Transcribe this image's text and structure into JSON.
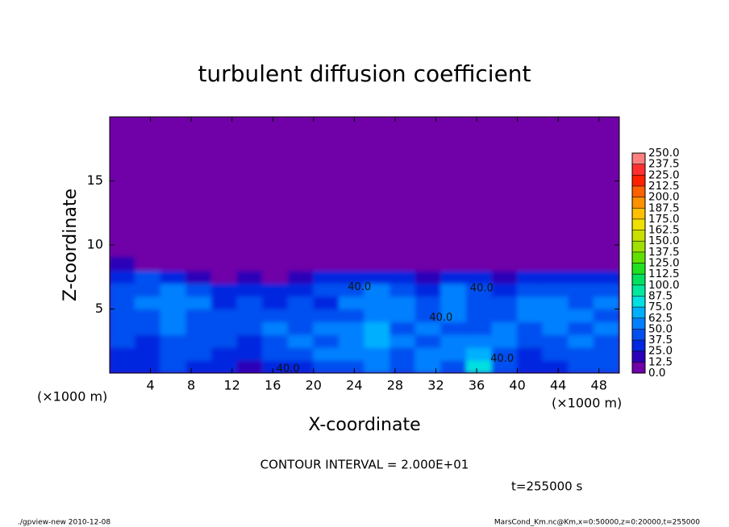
{
  "chart_data": {
    "type": "contour",
    "title": "turbulent diffusion coefficient",
    "x_label": "X-coordinate",
    "y_label": "Z-coordinate",
    "x_unit_label": "(×1000 m)",
    "y_unit_label": "(×1000 m)",
    "xlim": [
      0,
      50
    ],
    "xticks": [
      4,
      8,
      12,
      16,
      20,
      24,
      28,
      32,
      36,
      40,
      44,
      48
    ],
    "ylim": [
      0,
      20
    ],
    "yticks": [
      5,
      10,
      15
    ],
    "levels": [
      {
        "value": 0,
        "label": "0.0"
      },
      {
        "value": 12.5,
        "label": "12.5"
      },
      {
        "value": 25,
        "label": "25.0"
      },
      {
        "value": 37.5,
        "label": "37.5"
      },
      {
        "value": 50,
        "label": "50.0"
      },
      {
        "value": 62.5,
        "label": "62.5"
      },
      {
        "value": 75,
        "label": "75.0"
      },
      {
        "value": 87.5,
        "label": "87.5"
      },
      {
        "value": 100,
        "label": "100.0"
      },
      {
        "value": 112.5,
        "label": "112.5"
      },
      {
        "value": 125,
        "label": "125.0"
      },
      {
        "value": 137.5,
        "label": "137.5"
      },
      {
        "value": 150,
        "label": "150.0"
      },
      {
        "value": 162.5,
        "label": "162.5"
      },
      {
        "value": 175,
        "label": "175.0"
      },
      {
        "value": 187.5,
        "label": "187.5"
      },
      {
        "value": 200,
        "label": "200.0"
      },
      {
        "value": 212.5,
        "label": "212.5"
      },
      {
        "value": 225,
        "label": "225.0"
      },
      {
        "value": 237.5,
        "label": "237.5"
      },
      {
        "value": 250,
        "label": "250.0"
      }
    ],
    "colors": [
      "#7000a8",
      "#2a00b8",
      "#0028e0",
      "#0050f0",
      "#0080ff",
      "#00b0ff",
      "#00e0e0",
      "#00e8a0",
      "#00e060",
      "#20e020",
      "#60e000",
      "#a0e000",
      "#c8e000",
      "#f0e000",
      "#ffc000",
      "#ff9000",
      "#ff6000",
      "#ff2000",
      "#ff3030",
      "#ff8080"
    ],
    "field": {
      "x": [
        1.25,
        3.75,
        6.25,
        8.75,
        11.25,
        13.75,
        16.25,
        18.75,
        21.25,
        23.75,
        26.25,
        28.75,
        31.25,
        33.75,
        36.25,
        38.75,
        41.25,
        43.75,
        46.25,
        48.75
      ],
      "z": [
        0.5,
        1.5,
        2.5,
        3.5,
        4.5,
        5.5,
        6.5,
        7.5,
        8.5
      ],
      "values": [
        [
          30,
          25,
          40,
          35,
          30,
          20,
          30,
          35,
          40,
          45,
          55,
          40,
          60,
          45,
          80,
          40,
          30,
          35,
          40,
          40
        ],
        [
          35,
          30,
          45,
          40,
          35,
          30,
          40,
          45,
          50,
          50,
          60,
          45,
          55,
          50,
          70,
          45,
          35,
          40,
          45,
          40
        ],
        [
          40,
          35,
          45,
          45,
          40,
          35,
          45,
          50,
          45,
          55,
          70,
          50,
          45,
          55,
          50,
          50,
          40,
          45,
          50,
          45
        ],
        [
          45,
          40,
          50,
          40,
          45,
          40,
          50,
          40,
          50,
          50,
          65,
          45,
          50,
          45,
          45,
          50,
          45,
          50,
          45,
          50
        ],
        [
          40,
          45,
          50,
          45,
          40,
          45,
          40,
          45,
          40,
          45,
          60,
          50,
          45,
          50,
          40,
          45,
          50,
          55,
          50,
          45
        ],
        [
          45,
          50,
          55,
          50,
          35,
          40,
          35,
          40,
          35,
          50,
          55,
          55,
          40,
          55,
          45,
          40,
          55,
          50,
          45,
          50
        ],
        [
          40,
          45,
          50,
          40,
          25,
          30,
          30,
          35,
          40,
          45,
          50,
          45,
          35,
          50,
          40,
          35,
          45,
          45,
          40,
          45
        ],
        [
          35,
          40,
          35,
          20,
          10,
          15,
          10,
          20,
          30,
          35,
          35,
          30,
          20,
          35,
          30,
          20,
          35,
          30,
          30,
          35
        ],
        [
          15,
          10,
          10,
          5,
          2,
          5,
          2,
          5,
          5,
          10,
          10,
          5,
          5,
          10,
          5,
          5,
          10,
          5,
          5,
          10
        ]
      ]
    },
    "contour_labels": {
      "x": [
        17.5,
        38.5,
        32.5,
        36.5,
        24.5
      ],
      "z": [
        0.3,
        1.1,
        4.3,
        6.6,
        6.7
      ],
      "values": [
        40,
        40,
        40,
        40,
        40
      ],
      "value_labels": [
        "40.0",
        "40.0",
        "40.0",
        "40.0",
        "40.0"
      ]
    },
    "contour_interval_label": "CONTOUR INTERVAL = 2.000E+01",
    "time_label": "t=255000 s",
    "footer_left": "./gpview-new  2010-12-08",
    "footer_right": "MarsCond_Km.nc@Km,x=0:50000,z=0:20000,t=255000"
  }
}
